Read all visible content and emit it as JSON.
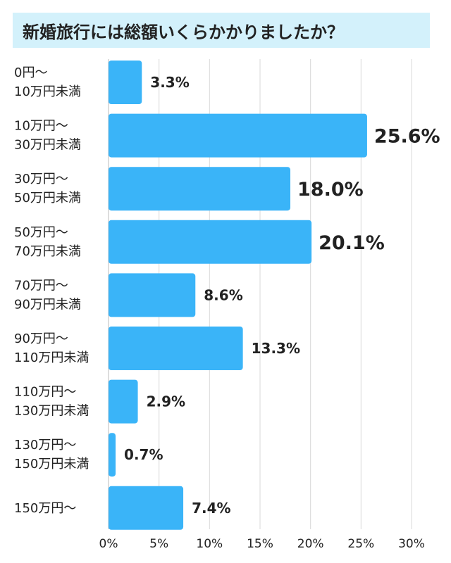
{
  "chart_data": {
    "type": "bar",
    "orientation": "horizontal",
    "title": "新婚旅行には総額いくらかかりましたか？",
    "categories": [
      [
        "0円～",
        "10万円未満"
      ],
      [
        "10万円～",
        "30万円未満"
      ],
      [
        "30万円～",
        "50万円未満"
      ],
      [
        "50万円～",
        "70万円未満"
      ],
      [
        "70万円～",
        "90万円未満"
      ],
      [
        "90万円～",
        "110万円未満"
      ],
      [
        "110万円～",
        "130万円未満"
      ],
      [
        "130万円～",
        "150万円未満"
      ],
      [
        "150万円～"
      ]
    ],
    "values": [
      3.3,
      25.6,
      18.0,
      20.1,
      8.6,
      13.3,
      2.9,
      0.7,
      7.4
    ],
    "value_labels": [
      "3.3%",
      "25.6%",
      "18.0%",
      "20.1%",
      "8.6%",
      "13.3%",
      "2.9%",
      "0.7%",
      "7.4%"
    ],
    "highlight": [
      false,
      true,
      true,
      true,
      false,
      false,
      false,
      false,
      false
    ],
    "xlim": [
      0,
      30
    ],
    "xticks": [
      0,
      5,
      10,
      15,
      20,
      25,
      30
    ],
    "xtick_labels": [
      "0%",
      "5%",
      "10%",
      "15%",
      "20%",
      "25%",
      "30%"
    ],
    "grid": true,
    "legend": "none",
    "colors": {
      "bar": "#3ab4f8",
      "title_bg": "#d3f1fb",
      "grid": "#d9d9d9",
      "text": "#222222"
    }
  }
}
